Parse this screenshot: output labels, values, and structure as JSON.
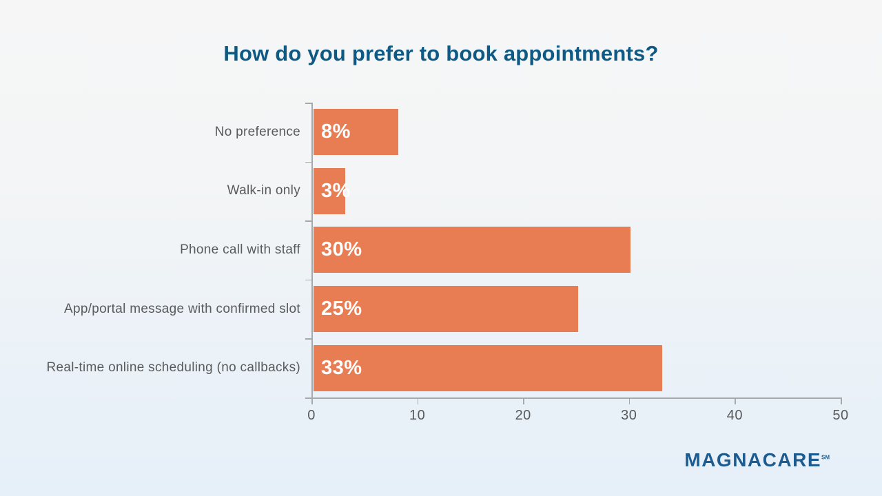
{
  "title": {
    "text": "How do you prefer to book appointments?",
    "color": "#0e5a84"
  },
  "chart_data": {
    "type": "bar",
    "orientation": "horizontal",
    "title": "How do you prefer to book appointments?",
    "categories": [
      "No preference",
      "Walk-in only",
      "Phone call with staff",
      "App/portal message with confirmed slot",
      "Real-time online scheduling (no callbacks)"
    ],
    "values": [
      8,
      3,
      30,
      25,
      33
    ],
    "value_labels": [
      "8%",
      "3%",
      "30%",
      "25%",
      "33%"
    ],
    "x_ticks": [
      "0",
      "10",
      "20",
      "30",
      "40",
      "50"
    ],
    "xlim": [
      0,
      50
    ],
    "xlabel": "",
    "ylabel": "",
    "grid": false,
    "legend": false,
    "bar_color": "#e87d54",
    "value_label_color": "#ffffff",
    "category_label_color": "#595a5c",
    "axis_color": "#a6a9ab",
    "tick_label_color": "#58595b"
  },
  "footer": {
    "brand": "MAGNACARE",
    "brand_mark": "SM",
    "brand_color": "#1d5c90"
  }
}
